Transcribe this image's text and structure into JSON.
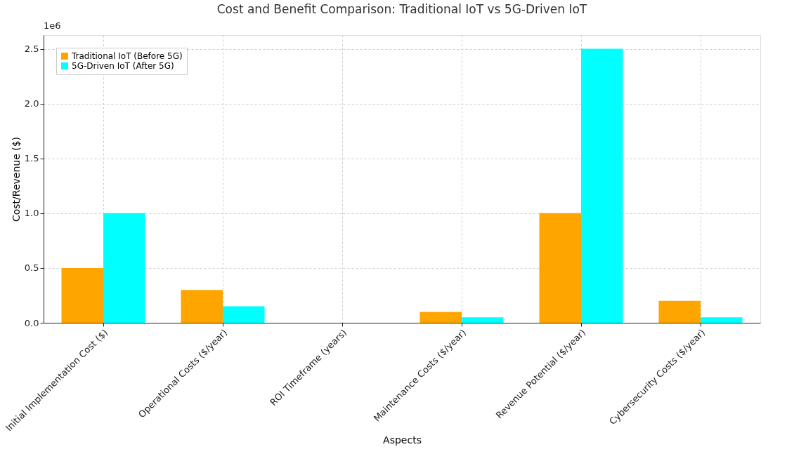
{
  "chart_data": {
    "type": "bar",
    "title": "Cost and Benefit Comparison: Traditional IoT vs 5G-Driven IoT",
    "xlabel": "Aspects",
    "ylabel": "Cost/Revenue ($)",
    "categories": [
      "Initial Implementation Cost ($)",
      "Operational Costs ($/year)",
      "ROI Timeframe (years)",
      "Maintenance Costs ($/year)",
      "Revenue Potential ($/year)",
      "Cybersecurity Costs ($/year)"
    ],
    "series": [
      {
        "name": "Traditional IoT (Before 5G)",
        "color": "#ffa500",
        "values": [
          0.5,
          0.3,
          0,
          0.1,
          1.0,
          0.2
        ]
      },
      {
        "name": "5G-Driven IoT (After 5G)",
        "color": "#00ffff",
        "values": [
          1.0,
          0.15,
          0,
          0.05,
          2.5,
          0.05
        ]
      }
    ],
    "ylim": [
      0,
      2.625
    ],
    "yticks": [
      {
        "value": 0,
        "label": "0.0"
      },
      0.5,
      {
        "value": 1,
        "label": "1.0"
      },
      1.5,
      {
        "value": 2,
        "label": "2.0"
      },
      2.5
    ],
    "annotations": [
      "1e6"
    ],
    "grid": true,
    "legend": "top left"
  }
}
